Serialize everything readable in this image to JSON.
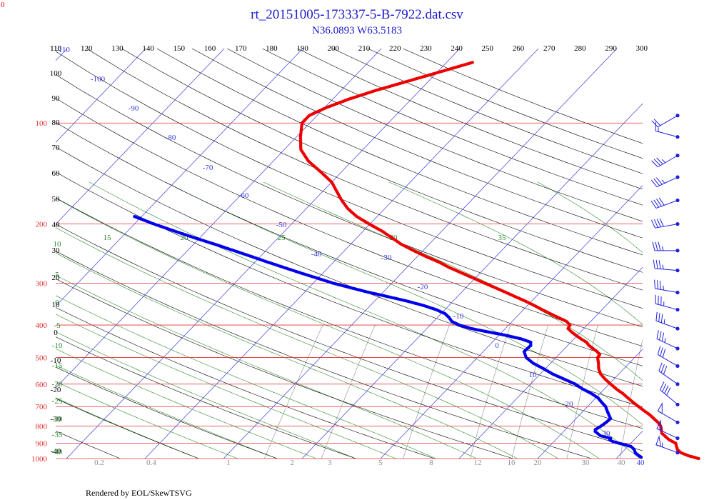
{
  "corner_label": "0",
  "title": "rt_20151005-173337-5-B-7922.dat.csv",
  "subtitle": "N36.0893 W63.5183",
  "footer": "Rendered by EOL/SkewTSVG",
  "colors": {
    "title": "#1a1ad0",
    "isobar": "#e03030",
    "isotherm": "#3a3adf",
    "dry_adiabat": "#000000",
    "moist_adiabat": "#2e8b2e",
    "mixing_ratio": "#8c8c8c",
    "temperature": "#ee0000",
    "dewpoint": "#0000ee",
    "wind": "#2020e0"
  },
  "chart_data": {
    "type": "scatter",
    "chart_kind": "skew-t log-p sounding",
    "pressure_axis": {
      "labels": [
        "100",
        "200",
        "300",
        "400",
        "500",
        "600",
        "700",
        "800",
        "900",
        "1000"
      ],
      "values": [
        100,
        200,
        300,
        400,
        500,
        600,
        700,
        800,
        900,
        1000
      ],
      "range": [
        100,
        1000
      ],
      "scale": "log"
    },
    "potential_temperature_labels": [
      "110",
      "120",
      "130",
      "140",
      "150",
      "160",
      "170",
      "180",
      "190",
      "200",
      "210",
      "220",
      "230",
      "240",
      "250",
      "260",
      "270",
      "280",
      "290",
      "300"
    ],
    "dry_adiabat_left_labels": [
      "110",
      "100",
      "90",
      "80",
      "70",
      "60",
      "50",
      "40",
      "30",
      "20",
      "10",
      "0",
      "-10",
      "-20",
      "-30",
      "-40"
    ],
    "isotherm_labels": [
      "-110",
      "-100",
      "-90",
      "-80",
      "-70",
      "-60",
      "-50",
      "-40",
      "-30",
      "-20",
      "-10",
      "0",
      "10",
      "20",
      "30",
      "40"
    ],
    "moist_adiabat_labels": [
      "15",
      "20",
      "25",
      "30",
      "35"
    ],
    "moist_adiabat_left_labels": [
      "10",
      "5",
      "0",
      "-5",
      "-10",
      "-15",
      "-20",
      "-25",
      "-30",
      "-35",
      "-40"
    ],
    "mixing_ratio_labels": [
      "0.2",
      "0.4",
      "1",
      "2",
      "3",
      "5",
      "8",
      "12",
      "16",
      "20",
      "30",
      "40"
    ],
    "temperature_profile": [
      {
        "p": 1000,
        "t": 20.5
      },
      {
        "p": 980,
        "t": 18.8
      },
      {
        "p": 960,
        "t": 17.5
      },
      {
        "p": 940,
        "t": 16.7
      },
      {
        "p": 920,
        "t": 16.2
      },
      {
        "p": 900,
        "t": 15.7
      },
      {
        "p": 880,
        "t": 14.5
      },
      {
        "p": 860,
        "t": 13.6
      },
      {
        "p": 840,
        "t": 12.7
      },
      {
        "p": 820,
        "t": 12.2
      },
      {
        "p": 800,
        "t": 11.7
      },
      {
        "p": 780,
        "t": 10.9
      },
      {
        "p": 760,
        "t": 9.9
      },
      {
        "p": 740,
        "t": 8.9
      },
      {
        "p": 720,
        "t": 7.7
      },
      {
        "p": 700,
        "t": 6.5
      },
      {
        "p": 680,
        "t": 5.3
      },
      {
        "p": 660,
        "t": 4.1
      },
      {
        "p": 640,
        "t": 2.9
      },
      {
        "p": 620,
        "t": 1.5
      },
      {
        "p": 600,
        "t": 0.2
      },
      {
        "p": 580,
        "t": -1.1
      },
      {
        "p": 560,
        "t": -2.3
      },
      {
        "p": 540,
        "t": -3.2
      },
      {
        "p": 520,
        "t": -3.9
      },
      {
        "p": 500,
        "t": -4.7
      },
      {
        "p": 490,
        "t": -4.8
      },
      {
        "p": 480,
        "t": -5.5
      },
      {
        "p": 470,
        "t": -6.4
      },
      {
        "p": 460,
        "t": -7.3
      },
      {
        "p": 450,
        "t": -8.0
      },
      {
        "p": 440,
        "t": -9.1
      },
      {
        "p": 430,
        "t": -10.1
      },
      {
        "p": 420,
        "t": -11.1
      },
      {
        "p": 410,
        "t": -12.0
      },
      {
        "p": 400,
        "t": -12.2
      },
      {
        "p": 390,
        "t": -13.1
      },
      {
        "p": 380,
        "t": -14.6
      },
      {
        "p": 370,
        "t": -16.1
      },
      {
        "p": 360,
        "t": -17.6
      },
      {
        "p": 350,
        "t": -19.1
      },
      {
        "p": 340,
        "t": -20.7
      },
      {
        "p": 330,
        "t": -22.5
      },
      {
        "p": 320,
        "t": -24.3
      },
      {
        "p": 310,
        "t": -26.2
      },
      {
        "p": 300,
        "t": -28.2
      },
      {
        "p": 290,
        "t": -30.2
      },
      {
        "p": 280,
        "t": -32.3
      },
      {
        "p": 270,
        "t": -34.5
      },
      {
        "p": 260,
        "t": -36.5
      },
      {
        "p": 250,
        "t": -38.9
      },
      {
        "p": 240,
        "t": -41.2
      },
      {
        "p": 230,
        "t": -43.5
      },
      {
        "p": 220,
        "t": -45.5
      },
      {
        "p": 210,
        "t": -47.6
      },
      {
        "p": 200,
        "t": -50.1
      },
      {
        "p": 190,
        "t": -52.6
      },
      {
        "p": 180,
        "t": -54.7
      },
      {
        "p": 170,
        "t": -56.5
      },
      {
        "p": 160,
        "t": -58.2
      },
      {
        "p": 150,
        "t": -60.0
      },
      {
        "p": 140,
        "t": -62.6
      },
      {
        "p": 130,
        "t": -65.5
      },
      {
        "p": 120,
        "t": -67.9
      },
      {
        "p": 110,
        "t": -69.5
      },
      {
        "p": 100,
        "t": -71.0
      },
      {
        "p": 95,
        "t": -71.0
      },
      {
        "p": 90,
        "t": -69.8
      },
      {
        "p": 85,
        "t": -68.0
      },
      {
        "p": 80,
        "t": -65.6
      },
      {
        "p": 75,
        "t": -62.6
      },
      {
        "p": 70,
        "t": -59.4
      },
      {
        "p": 66,
        "t": -56.7
      }
    ],
    "dewpoint_profile": [
      {
        "p": 990,
        "t": 13.0
      },
      {
        "p": 975,
        "t": 12.3
      },
      {
        "p": 960,
        "t": 11.7
      },
      {
        "p": 940,
        "t": 11.2
      },
      {
        "p": 920,
        "t": 10.4
      },
      {
        "p": 890,
        "t": 7.5
      },
      {
        "p": 880,
        "t": 6.9
      },
      {
        "p": 870,
        "t": 6.8
      },
      {
        "p": 855,
        "t": 5.2
      },
      {
        "p": 830,
        "t": 4.0
      },
      {
        "p": 820,
        "t": 3.8
      },
      {
        "p": 800,
        "t": 4.1
      },
      {
        "p": 780,
        "t": 4.3
      },
      {
        "p": 760,
        "t": 4.4
      },
      {
        "p": 740,
        "t": 3.7
      },
      {
        "p": 720,
        "t": 3.0
      },
      {
        "p": 700,
        "t": 2.3
      },
      {
        "p": 680,
        "t": 1.3
      },
      {
        "p": 660,
        "t": 0.3
      },
      {
        "p": 640,
        "t": -1.1
      },
      {
        "p": 620,
        "t": -2.8
      },
      {
        "p": 600,
        "t": -4.3
      },
      {
        "p": 580,
        "t": -6.3
      },
      {
        "p": 560,
        "t": -8.4
      },
      {
        "p": 540,
        "t": -10.2
      },
      {
        "p": 520,
        "t": -12.2
      },
      {
        "p": 500,
        "t": -13.8
      },
      {
        "p": 480,
        "t": -14.8
      },
      {
        "p": 460,
        "t": -14.7
      },
      {
        "p": 450,
        "t": -15.1
      },
      {
        "p": 440,
        "t": -16.7
      },
      {
        "p": 430,
        "t": -18.9
      },
      {
        "p": 420,
        "t": -21.6
      },
      {
        "p": 410,
        "t": -24.3
      },
      {
        "p": 400,
        "t": -26.3
      },
      {
        "p": 390,
        "t": -27.7
      },
      {
        "p": 380,
        "t": -28.5
      },
      {
        "p": 370,
        "t": -29.5
      },
      {
        "p": 360,
        "t": -31.1
      },
      {
        "p": 350,
        "t": -33.2
      },
      {
        "p": 340,
        "t": -35.7
      },
      {
        "p": 330,
        "t": -38.6
      },
      {
        "p": 320,
        "t": -41.7
      },
      {
        "p": 310,
        "t": -44.6
      },
      {
        "p": 300,
        "t": -47.5
      },
      {
        "p": 290,
        "t": -50.1
      },
      {
        "p": 280,
        "t": -52.8
      },
      {
        "p": 270,
        "t": -55.5
      },
      {
        "p": 260,
        "t": -58.3
      },
      {
        "p": 250,
        "t": -61.1
      },
      {
        "p": 240,
        "t": -64.1
      },
      {
        "p": 230,
        "t": -67.2
      },
      {
        "p": 220,
        "t": -70.6
      },
      {
        "p": 210,
        "t": -74.0
      },
      {
        "p": 200,
        "t": -77.5
      },
      {
        "p": 190,
        "t": -80.9
      }
    ],
    "wind_barbs": [
      {
        "p": 95,
        "speed_kt": 20,
        "dir_deg": 240
      },
      {
        "p": 110,
        "speed_kt": 15,
        "dir_deg": 285
      },
      {
        "p": 125,
        "speed_kt": 35,
        "dir_deg": 240
      },
      {
        "p": 145,
        "speed_kt": 35,
        "dir_deg": 245
      },
      {
        "p": 170,
        "speed_kt": 40,
        "dir_deg": 250
      },
      {
        "p": 200,
        "speed_kt": 40,
        "dir_deg": 260
      },
      {
        "p": 240,
        "speed_kt": 35,
        "dir_deg": 270
      },
      {
        "p": 275,
        "speed_kt": 35,
        "dir_deg": 275
      },
      {
        "p": 320,
        "speed_kt": 35,
        "dir_deg": 280
      },
      {
        "p": 360,
        "speed_kt": 35,
        "dir_deg": 285
      },
      {
        "p": 410,
        "speed_kt": 35,
        "dir_deg": 290
      },
      {
        "p": 470,
        "speed_kt": 35,
        "dir_deg": 295
      },
      {
        "p": 530,
        "speed_kt": 30,
        "dir_deg": 300
      },
      {
        "p": 600,
        "speed_kt": 30,
        "dir_deg": 305
      },
      {
        "p": 690,
        "speed_kt": 40,
        "dir_deg": 310
      },
      {
        "p": 780,
        "speed_kt": 50,
        "dir_deg": 300
      },
      {
        "p": 870,
        "speed_kt": 50,
        "dir_deg": 295
      },
      {
        "p": 960,
        "speed_kt": 55,
        "dir_deg": 290
      }
    ]
  }
}
